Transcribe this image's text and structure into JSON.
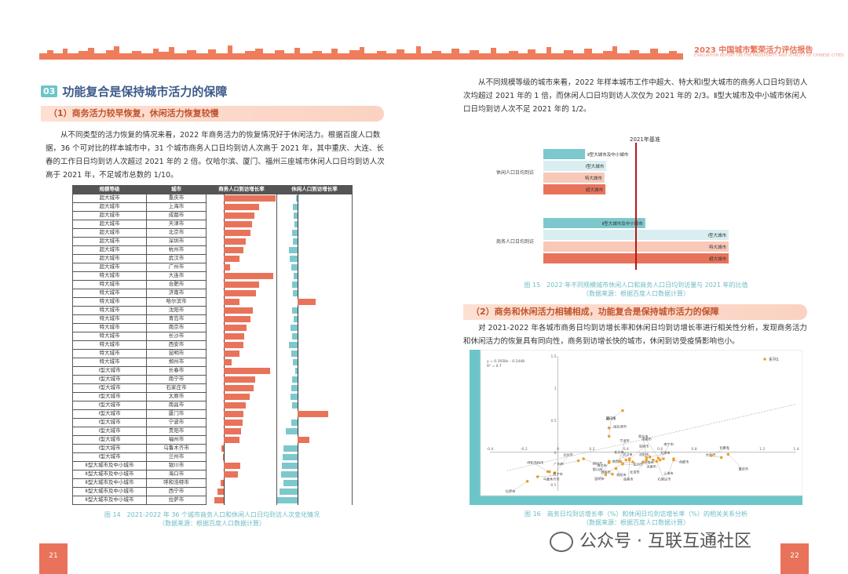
{
  "header": {
    "title": "2023 中国城市繁荣活力评估报告",
    "subtitle": "EVALUATION REPORT ON THE PROSPERITY AND VITALITY OF CHINESE CITIES"
  },
  "section": {
    "number": "03",
    "title": "功能复合是保持城市活力的保障"
  },
  "left": {
    "subhead1": "（1）商务活力较早恢复，休闲活力恢复较慢",
    "para1": "从不同类型的活力恢复的情况来看，2022 年商务活力的恢复情况好于休闲活力。根据百度人口数据，36 个可对比的样本城市中，31 个城市商务人口日均到访人次高于 2021 年，其中重庆、大连、长春的工作日日均到访人次超过 2021 年的 2 倍。仅哈尔滨、厦门、福州三座城市休闲人口日均到访人次高于 2021 年，不足城市总数的 1/10。",
    "table_headers": [
      "规模等级",
      "城市",
      "商务人口到访增长率",
      "休闲人口到访增长率"
    ],
    "table_rows": [
      {
        "level": "超大城市",
        "city": "重庆市",
        "biz": 100,
        "leisure": -3
      },
      {
        "level": "超大城市",
        "city": "上海市",
        "biz": 68,
        "leisure": -10
      },
      {
        "level": "超大城市",
        "city": "成都市",
        "biz": 59,
        "leisure": -9
      },
      {
        "level": "超大城市",
        "city": "天津市",
        "biz": 54,
        "leisure": -7
      },
      {
        "level": "超大城市",
        "city": "北京市",
        "biz": 52,
        "leisure": -12
      },
      {
        "level": "超大城市",
        "city": "深圳市",
        "biz": 42,
        "leisure": -10
      },
      {
        "level": "超大城市",
        "city": "杭州市",
        "biz": 38,
        "leisure": -18
      },
      {
        "level": "超大城市",
        "city": "武汉市",
        "biz": 30,
        "leisure": -16
      },
      {
        "level": "超大城市",
        "city": "广州市",
        "biz": 12,
        "leisure": -13
      },
      {
        "level": "特大城市",
        "city": "大连市",
        "biz": 96,
        "leisure": -8
      },
      {
        "level": "特大城市",
        "city": "合肥市",
        "biz": 68,
        "leisure": -12
      },
      {
        "level": "特大城市",
        "city": "济南市",
        "biz": 62,
        "leisure": -10
      },
      {
        "level": "特大城市",
        "city": "哈尔滨市",
        "biz": 30,
        "leisure": 38
      },
      {
        "level": "特大城市",
        "city": "沈阳市",
        "biz": 56,
        "leisure": -12
      },
      {
        "level": "特大城市",
        "city": "青岛市",
        "biz": 52,
        "leisure": -8
      },
      {
        "level": "特大城市",
        "city": "南京市",
        "biz": 44,
        "leisure": -15
      },
      {
        "level": "特大城市",
        "city": "长沙市",
        "biz": 40,
        "leisure": -12
      },
      {
        "level": "特大城市",
        "city": "西安市",
        "biz": 38,
        "leisure": -18
      },
      {
        "level": "特大城市",
        "city": "昆明市",
        "biz": 30,
        "leisure": -14
      },
      {
        "level": "特大城市",
        "city": "郑州市",
        "biz": 15,
        "leisure": -10
      },
      {
        "level": "Ⅰ型大城市",
        "city": "长春市",
        "biz": 90,
        "leisure": -5
      },
      {
        "level": "Ⅰ型大城市",
        "city": "南宁市",
        "biz": 60,
        "leisure": -12
      },
      {
        "level": "Ⅰ型大城市",
        "city": "石家庄市",
        "biz": 58,
        "leisure": -14
      },
      {
        "level": "Ⅰ型大城市",
        "city": "太原市",
        "biz": 50,
        "leisure": -15
      },
      {
        "level": "Ⅰ型大城市",
        "city": "南昌市",
        "biz": 42,
        "leisure": -12
      },
      {
        "level": "Ⅰ型大城市",
        "city": "厦门市",
        "biz": 38,
        "leisure": 65
      },
      {
        "level": "Ⅰ型大城市",
        "city": "宁波市",
        "biz": 36,
        "leisure": -14
      },
      {
        "level": "Ⅰ型大城市",
        "city": "贵阳市",
        "biz": 34,
        "leisure": -25
      },
      {
        "level": "Ⅰ型大城市",
        "city": "福州市",
        "biz": 30,
        "leisure": 25
      },
      {
        "level": "Ⅰ型大城市",
        "city": "乌鲁木齐市",
        "biz": -5,
        "leisure": -30
      },
      {
        "level": "Ⅰ型大城市",
        "city": "兰州市",
        "biz": -2,
        "leisure": -32
      },
      {
        "level": "Ⅱ型大城市及中小城市",
        "city": "银川市",
        "biz": 32,
        "leisure": -34
      },
      {
        "level": "Ⅱ型大城市及中小城市",
        "city": "海口市",
        "biz": 28,
        "leisure": -35
      },
      {
        "level": "Ⅱ型大城市及中小城市",
        "city": "呼和浩特市",
        "biz": -6,
        "leisure": -30
      },
      {
        "level": "Ⅱ型大城市及中小城市",
        "city": "西宁市",
        "biz": -12,
        "leisure": -38
      },
      {
        "level": "Ⅱ型大城市及中小城市",
        "city": "拉萨市",
        "biz": -18,
        "leisure": -45
      }
    ],
    "caption14_line1": "图 14　2021-2022 年 36 个城市商务人口和休闲人口日均到访人次变化情况",
    "caption14_line2": "（数据来源：根据百度人口数据计算）",
    "page": "21"
  },
  "right": {
    "para_top": "从不同规模等级的城市来看，2022 年样本城市工作中超大、特大和Ⅰ型大城市的商务人口日均到访人次均超过 2021 年的 1 倍，而休闲人口日均到访人次仅为 2021 年的 2/3。Ⅱ型大城市及中小城市休闲人口日均到访人次不足 2021 年的 1/2。",
    "caption15_line1": "图 15　2022 年不同规模城市休闲人口和商务人口日均到访量与 2021 年的比值",
    "caption15_line2": "（数据来源：根据百度人口数据计算）",
    "subhead2": "（2）商务和休闲活力相辅相成，功能复合是保持城市活力的保障",
    "para2": "对 2021-2022 年各城市商务日均到访增长率和休闲日均到访增长率进行相关性分析，发现商务活力和休闲活力的恢复具有同向性，商务到访增长快的城市，休闲到访受疫情影响也小。",
    "caption16_line1": "图 16　商务日均到访增长率（%）和休闲日均到访增长率（%）的相关关系分析",
    "caption16_line2": "（数据来源：根据百度人口数据计算）",
    "page": "22"
  },
  "chart_data": [
    {
      "type": "bar",
      "orientation": "horizontal",
      "title": "2021年基准",
      "baseline": 1.0,
      "groups": [
        {
          "name": "休闲人口日均到访",
          "series": [
            {
              "name": "Ⅱ型大城市及中小城市",
              "value": 0.45
            },
            {
              "name": "Ⅰ型大城市",
              "value": 0.68
            },
            {
              "name": "特大城市",
              "value": 0.66
            },
            {
              "name": "超大城市",
              "value": 0.67
            }
          ]
        },
        {
          "name": "商务人口日均到访",
          "series": [
            {
              "name": "Ⅱ型大城市及中小城市",
              "value": 1.1
            },
            {
              "name": "Ⅰ型大城市",
              "value": 2.0
            },
            {
              "name": "特大城市",
              "value": 2.0
            },
            {
              "name": "超大城市",
              "value": 2.0
            }
          ]
        }
      ],
      "colors": [
        "#7dc8cc",
        "#d9eef0",
        "#f8c8b8",
        "#e8735a"
      ]
    },
    {
      "type": "scatter",
      "equation": "y = 0.3058x - 0.2448",
      "r2": "R² = 0.7",
      "legend": "系列1",
      "xlim": [
        -0.4,
        1.4
      ],
      "ylim": [
        -0.6,
        1.5
      ],
      "xticks": [
        "-0.4",
        "-0.2",
        "0",
        "0.2",
        "0.4",
        "0.6",
        "0.8",
        "1",
        "1.2",
        "1.4"
      ],
      "yticks": [
        "1.5",
        "1",
        "0.5",
        "0",
        "-0.5"
      ],
      "points": [
        {
          "label": "哈尔滨市",
          "x": 0.3,
          "y": 0.38
        },
        {
          "label": "厦门市",
          "x": 0.38,
          "y": 0.65
        },
        {
          "label": "福州市",
          "x": 0.3,
          "y": 0.25
        },
        {
          "label": "重庆市",
          "x": 1.0,
          "y": -0.03
        },
        {
          "label": "大连市",
          "x": 0.96,
          "y": -0.08
        },
        {
          "label": "长春市",
          "x": 0.9,
          "y": -0.05
        },
        {
          "label": "上海市",
          "x": 0.68,
          "y": -0.1
        },
        {
          "label": "成都市",
          "x": 0.59,
          "y": -0.09
        },
        {
          "label": "合肥市",
          "x": 0.68,
          "y": -0.12
        },
        {
          "label": "济南市",
          "x": 0.62,
          "y": -0.1
        },
        {
          "label": "南宁市",
          "x": 0.6,
          "y": -0.12
        },
        {
          "label": "石家庄市",
          "x": 0.58,
          "y": -0.14
        },
        {
          "label": "沈阳市",
          "x": 0.56,
          "y": -0.12
        },
        {
          "label": "天津市",
          "x": 0.54,
          "y": -0.07
        },
        {
          "label": "北京市",
          "x": 0.52,
          "y": -0.12
        },
        {
          "label": "青岛市",
          "x": 0.52,
          "y": -0.08
        },
        {
          "label": "太原市",
          "x": 0.5,
          "y": -0.15
        },
        {
          "label": "南京市",
          "x": 0.44,
          "y": -0.15
        },
        {
          "label": "深圳市",
          "x": 0.42,
          "y": -0.1
        },
        {
          "label": "南昌市",
          "x": 0.42,
          "y": -0.12
        },
        {
          "label": "长沙市",
          "x": 0.4,
          "y": -0.12
        },
        {
          "label": "杭州市",
          "x": 0.38,
          "y": -0.18
        },
        {
          "label": "西安市",
          "x": 0.38,
          "y": -0.18
        },
        {
          "label": "宁波市",
          "x": 0.36,
          "y": -0.14
        },
        {
          "label": "贵阳市",
          "x": 0.34,
          "y": -0.25
        },
        {
          "label": "银川市",
          "x": 0.32,
          "y": -0.34
        },
        {
          "label": "武汉市",
          "x": 0.3,
          "y": -0.16
        },
        {
          "label": "昆明市",
          "x": 0.3,
          "y": -0.14
        },
        {
          "label": "海口市",
          "x": 0.28,
          "y": -0.35
        },
        {
          "label": "郑州市",
          "x": 0.15,
          "y": -0.1
        },
        {
          "label": "广州市",
          "x": 0.12,
          "y": -0.13
        },
        {
          "label": "兰州市",
          "x": -0.02,
          "y": -0.32
        },
        {
          "label": "乌鲁木齐市",
          "x": -0.05,
          "y": -0.3
        },
        {
          "label": "呼和浩特市",
          "x": -0.06,
          "y": -0.3
        },
        {
          "label": "西宁市",
          "x": -0.12,
          "y": -0.38
        },
        {
          "label": "拉萨市",
          "x": -0.18,
          "y": -0.45
        }
      ]
    }
  ],
  "watermark": "公众号 · 互联互通社区"
}
